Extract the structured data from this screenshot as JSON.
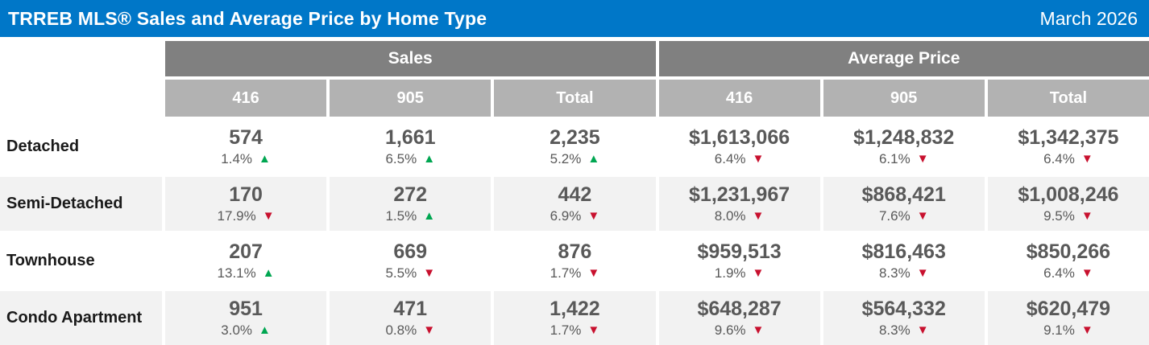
{
  "header": {
    "title": "TRREB MLS® Sales and Average Price by Home Type",
    "date": "March 2026"
  },
  "icons": {
    "up": "▲",
    "down": "▼"
  },
  "colors": {
    "header_blue": "#0077C8",
    "group_header_gray": "#808080",
    "subheader_gray": "#B2B2B2",
    "row_stripe_gray": "#F2F2F2",
    "value_gray": "#595959",
    "up_green": "#00A651",
    "down_red": "#C8102E"
  },
  "chart_data": {
    "type": "table",
    "title": "TRREB MLS® Sales and Average Price by Home Type",
    "period": "March 2026",
    "groups": [
      {
        "label": "Sales",
        "columns": [
          "416",
          "905",
          "Total"
        ]
      },
      {
        "label": "Average Price",
        "columns": [
          "416",
          "905",
          "Total"
        ]
      }
    ],
    "rows": [
      {
        "label": "Detached",
        "cells": [
          {
            "value": "574",
            "pct": "1.4%",
            "dir": "up"
          },
          {
            "value": "1,661",
            "pct": "6.5%",
            "dir": "up"
          },
          {
            "value": "2,235",
            "pct": "5.2%",
            "dir": "up"
          },
          {
            "value": "$1,613,066",
            "pct": "6.4%",
            "dir": "down"
          },
          {
            "value": "$1,248,832",
            "pct": "6.1%",
            "dir": "down"
          },
          {
            "value": "$1,342,375",
            "pct": "6.4%",
            "dir": "down"
          }
        ]
      },
      {
        "label": "Semi-Detached",
        "cells": [
          {
            "value": "170",
            "pct": "17.9%",
            "dir": "down"
          },
          {
            "value": "272",
            "pct": "1.5%",
            "dir": "up"
          },
          {
            "value": "442",
            "pct": "6.9%",
            "dir": "down"
          },
          {
            "value": "$1,231,967",
            "pct": "8.0%",
            "dir": "down"
          },
          {
            "value": "$868,421",
            "pct": "7.6%",
            "dir": "down"
          },
          {
            "value": "$1,008,246",
            "pct": "9.5%",
            "dir": "down"
          }
        ]
      },
      {
        "label": "Townhouse",
        "cells": [
          {
            "value": "207",
            "pct": "13.1%",
            "dir": "up"
          },
          {
            "value": "669",
            "pct": "5.5%",
            "dir": "down"
          },
          {
            "value": "876",
            "pct": "1.7%",
            "dir": "down"
          },
          {
            "value": "$959,513",
            "pct": "1.9%",
            "dir": "down"
          },
          {
            "value": "$816,463",
            "pct": "8.3%",
            "dir": "down"
          },
          {
            "value": "$850,266",
            "pct": "6.4%",
            "dir": "down"
          }
        ]
      },
      {
        "label": "Condo Apartment",
        "cells": [
          {
            "value": "951",
            "pct": "3.0%",
            "dir": "up"
          },
          {
            "value": "471",
            "pct": "0.8%",
            "dir": "down"
          },
          {
            "value": "1,422",
            "pct": "1.7%",
            "dir": "down"
          },
          {
            "value": "$648,287",
            "pct": "9.6%",
            "dir": "down"
          },
          {
            "value": "$564,332",
            "pct": "8.3%",
            "dir": "down"
          },
          {
            "value": "$620,479",
            "pct": "9.1%",
            "dir": "down"
          }
        ]
      }
    ]
  }
}
